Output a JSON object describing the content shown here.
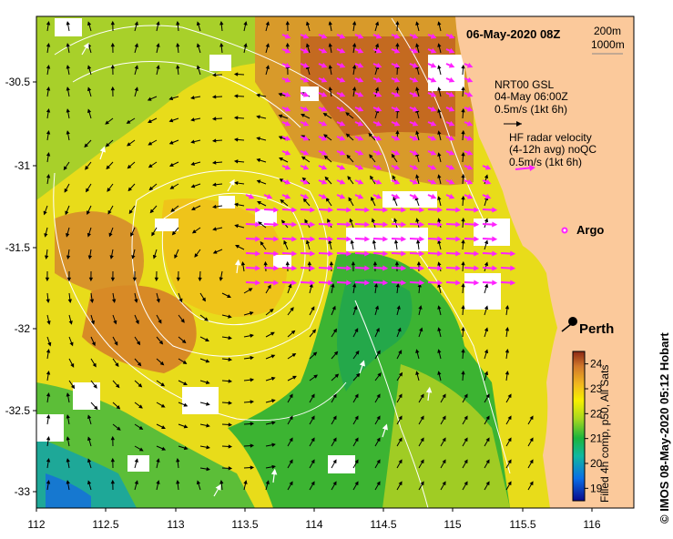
{
  "title": "06-May-2020 08Z",
  "scale": {
    "line1": "200m",
    "line2": "1000m"
  },
  "legend": {
    "nrt_label_1": "NRT00 GSL",
    "nrt_label_2": "04-May 06:00Z",
    "nrt_speed": "0.5m/s (1kt 6h)",
    "hf_label_1": "HF radar velocity",
    "hf_label_2": "(4-12h avg) noQC",
    "hf_speed": "0.5m/s (1kt 6h)",
    "argo_label": "Argo"
  },
  "city": {
    "name": "Perth"
  },
  "colorbar": {
    "title": "Filled 4h comp, p50, All Sats",
    "ticks": [
      "24",
      "23",
      "22",
      "21",
      "20",
      "19"
    ],
    "range": [
      18.5,
      24.5
    ]
  },
  "axes": {
    "y_ticks": [
      "-30.5",
      "-31",
      "-31.5",
      "-32",
      "-32.5",
      "-33"
    ],
    "x_ticks": [
      "112",
      "112.5",
      "113",
      "113.5",
      "114",
      "114.5",
      "115",
      "115.5",
      "116"
    ]
  },
  "credit": "© IMOS 08-May-2020 05:12 Hobart",
  "colors": {
    "land": "#fbc99b",
    "hf_arrow": "#ff22ff",
    "contour": "#ffffff"
  }
}
